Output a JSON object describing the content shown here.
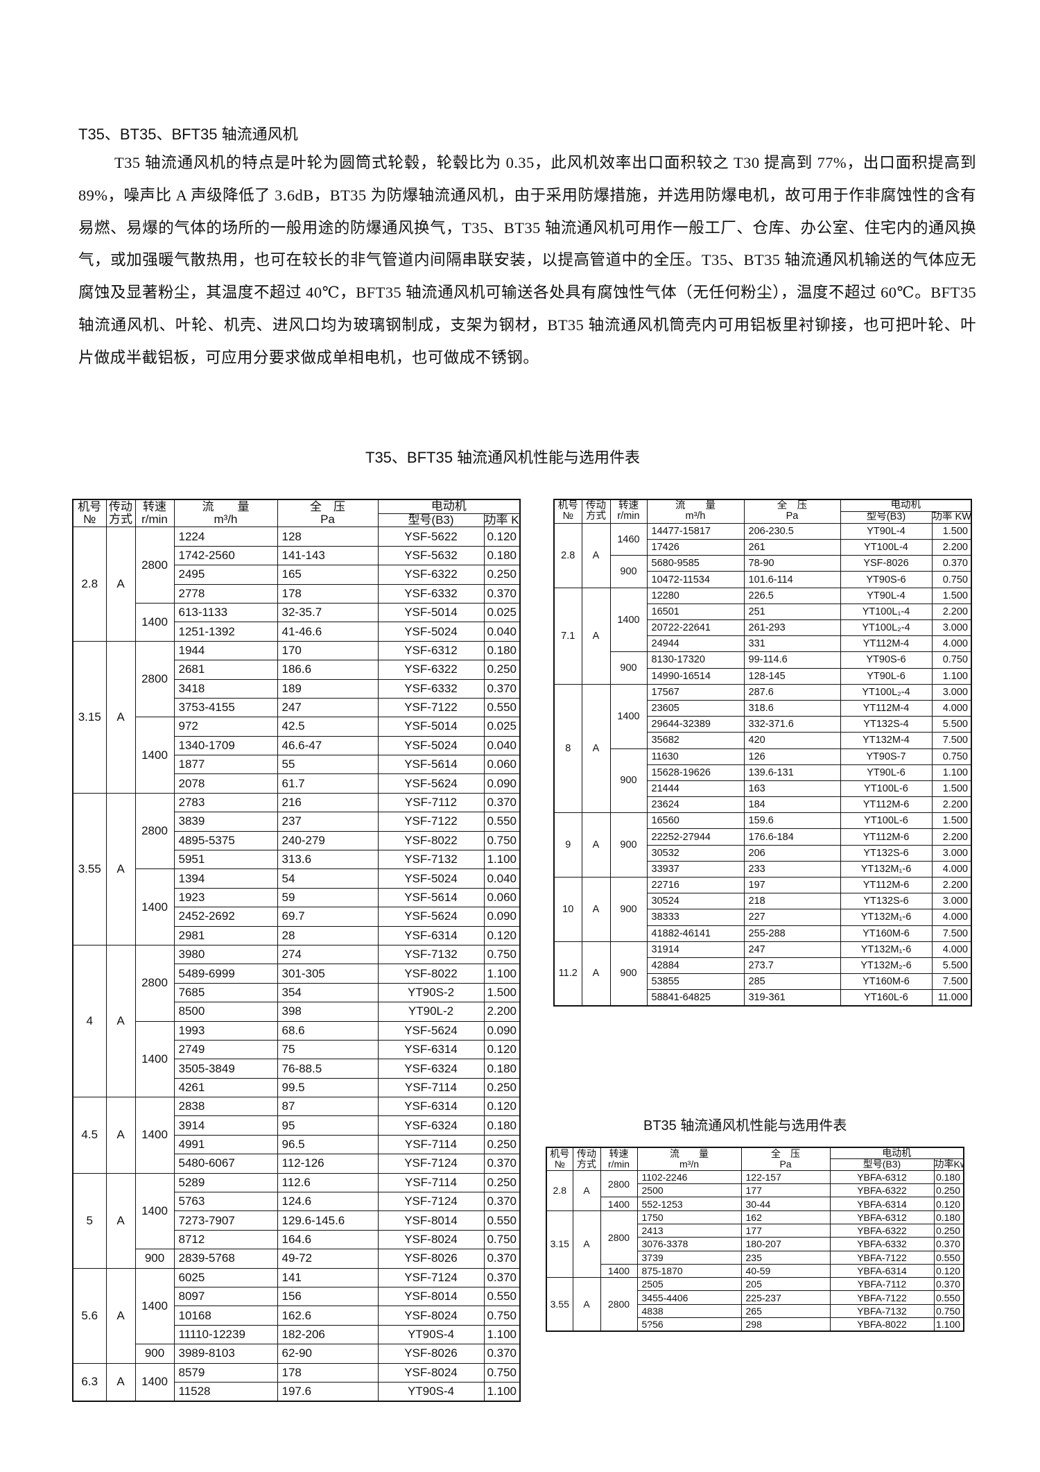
{
  "heading": "T35、BT35、BFT35 轴流通风机",
  "paragraph": "T35 轴流通风机的特点是叶轮为圆筒式轮毂，轮毂比为 0.35，此风机效率出口面积较之 T30 提高到 77%，出口面积提高到 89%，噪声比 A 声级降低了 3.6dB，BT35 为防爆轴流通风机，由于采用防爆措施，并选用防爆电机，故可用于作非腐蚀性的含有易燃、易爆的气体的场所的一般用途的防爆通风换气，T35、BT35 轴流通风机可用作一般工厂、仓库、办公室、住宅内的通风换气，或加强暖气散热用，也可在较长的非气管道内间隔串联安装，以提高管道中的全压。T35、BT35 轴流通风机输送的气体应无腐蚀及显著粉尘，其温度不超过 40℃，BFT35 轴流通风机可输送各处具有腐蚀性气体（无任何粉尘），温度不超过 60℃。BFT35 轴流通风机、叶轮、机壳、进风口均为玻璃钢制成，支架为钢材，BT35 轴流通风机筒壳内可用铝板里衬铆接，也可把叶轮、叶片做成半截铝板，可应用分要求做成单相电机，也可做成不锈钢。",
  "table1_title": "T35、BFT35 轴流通风机性能与选用件表",
  "table3_title": "BT35 轴流通风机性能与选用件表",
  "headers": {
    "no": "机号",
    "no_sub": "№",
    "drive": "传动",
    "drive_sub": "方式",
    "speed": "转速",
    "speed_sub": "r/min",
    "flow": "流　　量",
    "flow_sub": "m³/h",
    "flow_sub_bt": "m³/n",
    "pressure": "全　压",
    "pressure_sub": "Pa",
    "motor": "电动机",
    "model": "型号(B3)",
    "power": "功率 KW",
    "power_bt": "功率Kw"
  },
  "table1": [
    {
      "no": "2.8",
      "drive": "A",
      "speeds": [
        {
          "rpm": "2800",
          "rows": [
            [
              "1224",
              "128",
              "YSF-5622",
              "0.120"
            ],
            [
              "1742-2560",
              "141-143",
              "YSF-5632",
              "0.180"
            ],
            [
              "2495",
              "165",
              "YSF-6322",
              "0.250"
            ],
            [
              "2778",
              "178",
              "YSF-6332",
              "0.370"
            ]
          ]
        },
        {
          "rpm": "1400",
          "rows": [
            [
              "613-1133",
              "32-35.7",
              "YSF-5014",
              "0.025"
            ],
            [
              "1251-1392",
              "41-46.6",
              "YSF-5024",
              "0.040"
            ]
          ]
        }
      ]
    },
    {
      "no": "3.15",
      "drive": "A",
      "speeds": [
        {
          "rpm": "2800",
          "rows": [
            [
              "1944",
              "170",
              "YSF-6312",
              "0.180"
            ],
            [
              "2681",
              "186.6",
              "YSF-6322",
              "0.250"
            ],
            [
              "3418",
              "189",
              "YSF-6332",
              "0.370"
            ],
            [
              "3753-4155",
              "247",
              "YSF-7122",
              "0.550"
            ]
          ]
        },
        {
          "rpm": "1400",
          "rows": [
            [
              "972",
              "42.5",
              "YSF-5014",
              "0.025"
            ],
            [
              "1340-1709",
              "46.6-47",
              "YSF-5024",
              "0.040"
            ],
            [
              "1877",
              "55",
              "YSF-5614",
              "0.060"
            ],
            [
              "2078",
              "61.7",
              "YSF-5624",
              "0.090"
            ]
          ]
        }
      ]
    },
    {
      "no": "3.55",
      "drive": "A",
      "speeds": [
        {
          "rpm": "2800",
          "rows": [
            [
              "2783",
              "216",
              "YSF-7112",
              "0.370"
            ],
            [
              "3839",
              "237",
              "YSF-7122",
              "0.550"
            ],
            [
              "4895-5375",
              "240-279",
              "YSF-8022",
              "0.750"
            ],
            [
              "5951",
              "313.6",
              "YSF-7132",
              "1.100"
            ]
          ]
        },
        {
          "rpm": "1400",
          "rows": [
            [
              "1394",
              "54",
              "YSF-5024",
              "0.040"
            ],
            [
              "1923",
              "59",
              "YSF-5614",
              "0.060"
            ],
            [
              "2452-2692",
              "69.7",
              "YSF-5624",
              "0.090"
            ],
            [
              "2981",
              "28",
              "YSF-6314",
              "0.120"
            ]
          ]
        }
      ]
    },
    {
      "no": "4",
      "drive": "A",
      "speeds": [
        {
          "rpm": "2800",
          "rows": [
            [
              "3980",
              "274",
              "YSF-7132",
              "0.750"
            ],
            [
              "5489-6999",
              "301-305",
              "YSF-8022",
              "1.100"
            ],
            [
              "7685",
              "354",
              "YT90S-2",
              "1.500"
            ],
            [
              "8500",
              "398",
              "YT90L-2",
              "2.200"
            ]
          ]
        },
        {
          "rpm": "1400",
          "rows": [
            [
              "1993",
              "68.6",
              "YSF-5624",
              "0.090"
            ],
            [
              "2749",
              "75",
              "YSF-6314",
              "0.120"
            ],
            [
              "3505-3849",
              "76-88.5",
              "YSF-6324",
              "0.180"
            ],
            [
              "4261",
              "99.5",
              "YSF-7114",
              "0.250"
            ]
          ]
        }
      ]
    },
    {
      "no": "4.5",
      "drive": "A",
      "speeds": [
        {
          "rpm": "1400",
          "rows": [
            [
              "2838",
              "87",
              "YSF-6314",
              "0.120"
            ],
            [
              "3914",
              "95",
              "YSF-6324",
              "0.180"
            ],
            [
              "4991",
              "96.5",
              "YSF-7114",
              "0.250"
            ],
            [
              "5480-6067",
              "112-126",
              "YSF-7124",
              "0.370"
            ]
          ]
        }
      ]
    },
    {
      "no": "5",
      "drive": "A",
      "speeds": [
        {
          "rpm": "1400",
          "rows": [
            [
              "5289",
              "112.6",
              "YSF-7114",
              "0.250"
            ],
            [
              "5763",
              "124.6",
              "YSF-7124",
              "0.370"
            ],
            [
              "7273-7907",
              "129.6-145.6",
              "YSF-8014",
              "0.550"
            ],
            [
              "8712",
              "164.6",
              "YSF-8024",
              "0.750"
            ]
          ]
        },
        {
          "rpm": "900",
          "rows": [
            [
              "2839-5768",
              "49-72",
              "YSF-8026",
              "0.370"
            ]
          ]
        }
      ]
    },
    {
      "no": "5.6",
      "drive": "A",
      "speeds": [
        {
          "rpm": "1400",
          "rows": [
            [
              "6025",
              "141",
              "YSF-7124",
              "0.370"
            ],
            [
              "8097",
              "156",
              "YSF-8014",
              "0.550"
            ],
            [
              "10168",
              "162.6",
              "YSF-8024",
              "0.750"
            ],
            [
              "11110-12239",
              "182-206",
              "YT90S-4",
              "1.100"
            ]
          ]
        },
        {
          "rpm": "900",
          "rows": [
            [
              "3989-8103",
              "62-90",
              "YSF-8026",
              "0.370"
            ]
          ]
        }
      ]
    },
    {
      "no": "6.3",
      "drive": "A",
      "speeds": [
        {
          "rpm": "1400",
          "rows": [
            [
              "8579",
              "178",
              "YSF-8024",
              "0.750"
            ],
            [
              "11528",
              "197.6",
              "YT90S-4",
              "1.100"
            ]
          ]
        }
      ]
    }
  ],
  "table2": [
    {
      "no": "2.8",
      "drive": "A",
      "speeds": [
        {
          "rpm": "1460",
          "rows": [
            [
              "14477-15817",
              "206-230.5",
              "YT90L-4",
              "1.500"
            ],
            [
              "17426",
              "261",
              "YT100L-4",
              "2.200"
            ]
          ]
        },
        {
          "rpm": "900",
          "rows": [
            [
              "5680-9585",
              "78-90",
              "YSF-8026",
              "0.370"
            ],
            [
              "10472-11534",
              "101.6-114",
              "YT90S-6",
              "0.750"
            ]
          ]
        }
      ]
    },
    {
      "no": "7.1",
      "drive": "A",
      "speeds": [
        {
          "rpm": "1400",
          "rows": [
            [
              "12280",
              "226.5",
              "YT90L-4",
              "1.500"
            ],
            [
              "16501",
              "251",
              "YT100L₁-4",
              "2.200"
            ],
            [
              "20722-22641",
              "261-293",
              "YT100L₂-4",
              "3.000"
            ],
            [
              "24944",
              "331",
              "YT112M-4",
              "4.000"
            ]
          ]
        },
        {
          "rpm": "900",
          "rows": [
            [
              "8130-17320",
              "99-114.6",
              "YT90S-6",
              "0.750"
            ],
            [
              "14990-16514",
              "128-145",
              "YT90L-6",
              "1.100"
            ]
          ]
        }
      ]
    },
    {
      "no": "8",
      "drive": "A",
      "speeds": [
        {
          "rpm": "1400",
          "rows": [
            [
              "17567",
              "287.6",
              "YT100L₂-4",
              "3.000"
            ],
            [
              "23605",
              "318.6",
              "YT112M-4",
              "4.000"
            ],
            [
              "29644-32389",
              "332-371.6",
              "YT132S-4",
              "5.500"
            ],
            [
              "35682",
              "420",
              "YT132M-4",
              "7.500"
            ]
          ]
        },
        {
          "rpm": "900",
          "rows": [
            [
              "11630",
              "126",
              "YT90S-7",
              "0.750"
            ],
            [
              "15628-19626",
              "139.6-131",
              "YT90L-6",
              "1.100"
            ],
            [
              "21444",
              "163",
              "YT100L-6",
              "1.500"
            ],
            [
              "23624",
              "184",
              "YT112M-6",
              "2.200"
            ]
          ]
        }
      ]
    },
    {
      "no": "9",
      "drive": "A",
      "speeds": [
        {
          "rpm": "900",
          "rows": [
            [
              "16560",
              "159.6",
              "YT100L-6",
              "1.500"
            ],
            [
              "22252-27944",
              "176.6-184",
              "YT112M-6",
              "2.200"
            ],
            [
              "30532",
              "206",
              "YT132S-6",
              "3.000"
            ],
            [
              "33937",
              "233",
              "YT132M₁-6",
              "4.000"
            ]
          ]
        }
      ]
    },
    {
      "no": "10",
      "drive": "A",
      "speeds": [
        {
          "rpm": "900",
          "rows": [
            [
              "22716",
              "197",
              "YT112M-6",
              "2.200"
            ],
            [
              "30524",
              "218",
              "YT132S-6",
              "3.000"
            ],
            [
              "38333",
              "227",
              "YT132M₁-6",
              "4.000"
            ],
            [
              "41882-46141",
              "255-288",
              "YT160M-6",
              "7.500"
            ]
          ]
        }
      ]
    },
    {
      "no": "11.2",
      "drive": "A",
      "speeds": [
        {
          "rpm": "900",
          "rows": [
            [
              "31914",
              "247",
              "YT132M₁-6",
              "4.000"
            ],
            [
              "42884",
              "273.7",
              "YT132M₂-6",
              "5.500"
            ],
            [
              "53855",
              "285",
              "YT160M-6",
              "7.500"
            ],
            [
              "58841-64825",
              "319-361",
              "YT160L-6",
              "11.000"
            ]
          ]
        }
      ]
    }
  ],
  "table3": [
    {
      "no": "2.8",
      "drive": "A",
      "speeds": [
        {
          "rpm": "2800",
          "rows": [
            [
              "1102-2246",
              "122-157",
              "YBFA-6312",
              "0.180"
            ],
            [
              "2500",
              "177",
              "YBFA-6322",
              "0.250"
            ]
          ]
        },
        {
          "rpm": "1400",
          "rows": [
            [
              "552-1253",
              "30-44",
              "YBFA-6314",
              "0.120"
            ]
          ]
        }
      ]
    },
    {
      "no": "3.15",
      "drive": "A",
      "speeds": [
        {
          "rpm": "2800",
          "rows": [
            [
              "1750",
              "162",
              "YBFA-6312",
              "0.180"
            ],
            [
              "2413",
              "177",
              "YBFA-6322",
              "0.250"
            ],
            [
              "3076-3378",
              "180-207",
              "YBFA-6332",
              "0.370"
            ],
            [
              "3739",
              "235",
              "YBFA-7122",
              "0.550"
            ]
          ]
        },
        {
          "rpm": "1400",
          "rows": [
            [
              "875-1870",
              "40-59",
              "YBFA-6314",
              "0.120"
            ]
          ]
        }
      ]
    },
    {
      "no": "3.55",
      "drive": "A",
      "speeds": [
        {
          "rpm": "2800",
          "rows": [
            [
              "2505",
              "205",
              "YBFA-7112",
              "0.370"
            ],
            [
              "3455-4406",
              "225-237",
              "YBFA-7122",
              "0.550"
            ],
            [
              "4838",
              "265",
              "YBFA-7132",
              "0.750"
            ],
            [
              "5?56",
              "298",
              "YBFA-8022",
              "1.100"
            ]
          ]
        }
      ]
    }
  ]
}
